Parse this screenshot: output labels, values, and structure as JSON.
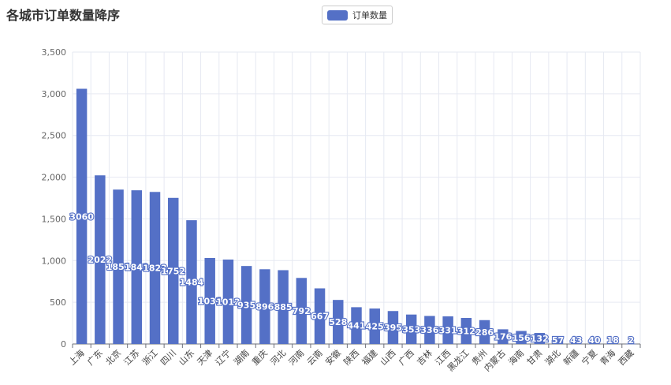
{
  "title": "各城市订单数量降序",
  "legend": {
    "label": "订单数量"
  },
  "colors": {
    "bar": "#5470c6",
    "grid": "#e6e9f2",
    "axis": "#6e7079"
  },
  "chart_data": {
    "type": "bar",
    "title": "各城市订单数量降序",
    "categories": [
      "上海",
      "广东",
      "北京",
      "江苏",
      "浙江",
      "四川",
      "山东",
      "天津",
      "辽宁",
      "湖南",
      "重庆",
      "河北",
      "河南",
      "云南",
      "安徽",
      "陕西",
      "福建",
      "山西",
      "广西",
      "吉林",
      "江西",
      "黑龙江",
      "贵州",
      "内蒙古",
      "海南",
      "甘肃",
      "湖北",
      "新疆",
      "宁夏",
      "青海",
      "西藏"
    ],
    "series": [
      {
        "name": "订单数量",
        "values": [
          3060,
          2022,
          1851,
          1843,
          1823,
          1752,
          1484,
          1031,
          1012,
          935,
          896,
          885,
          792,
          667,
          528,
          441,
          425,
          395,
          353,
          336,
          331,
          312,
          286,
          176,
          156,
          132,
          57,
          43,
          40,
          18,
          2
        ]
      }
    ],
    "ylim": [
      0,
      3500
    ],
    "yticks": [
      0,
      500,
      1000,
      1500,
      2000,
      2500,
      3000,
      3500
    ],
    "ytick_labels": [
      "0",
      "500",
      "1,000",
      "1,500",
      "2,000",
      "2,500",
      "3,000",
      "3,500"
    ],
    "grid": true,
    "legend_position": "top-center"
  }
}
